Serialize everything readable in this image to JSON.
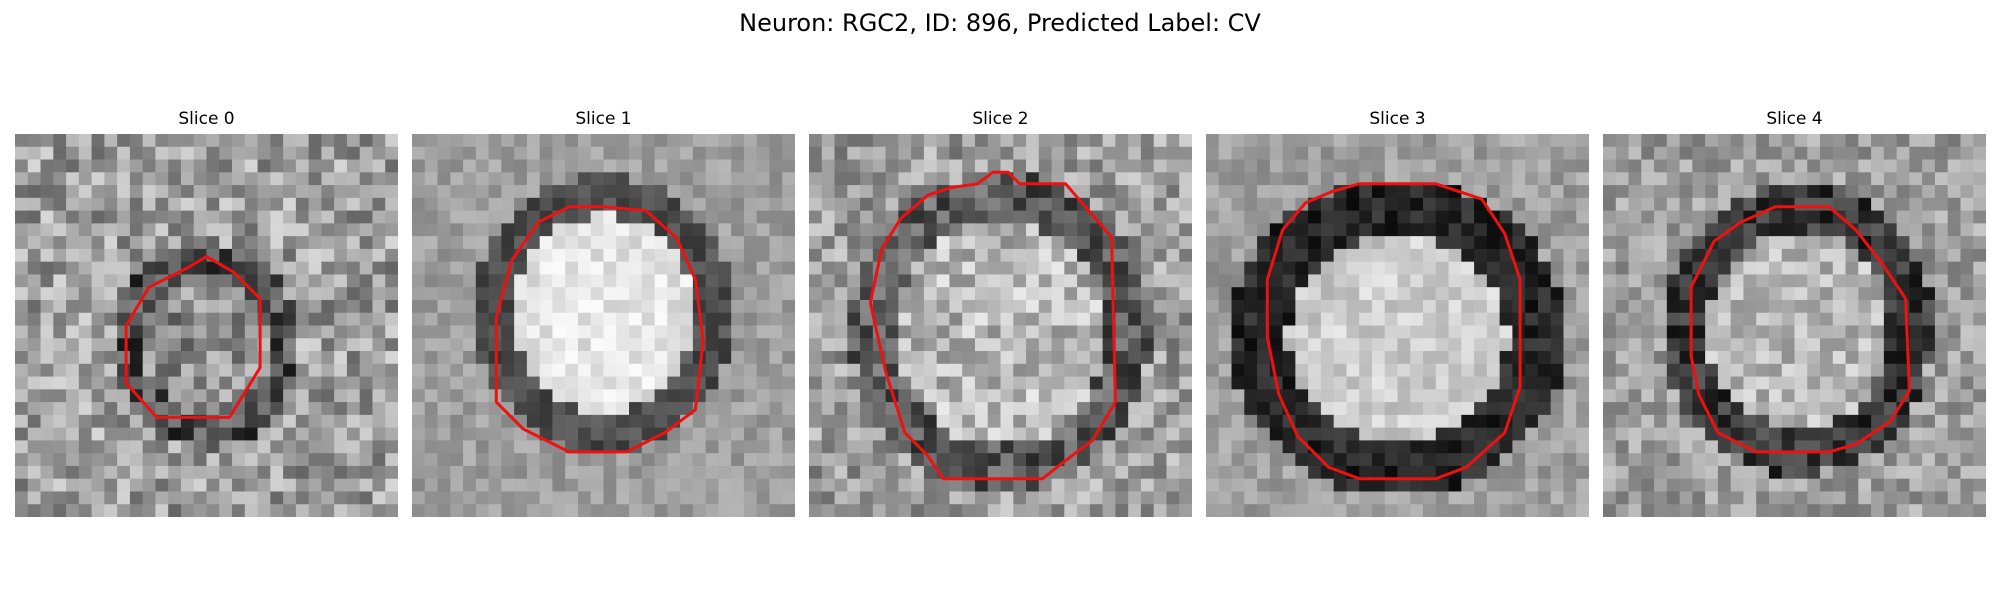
{
  "figure": {
    "suptitle": "Neuron: RGC2, ID: 896, Predicted Label: CV"
  },
  "panels": [
    {
      "title": "Slice 0"
    },
    {
      "title": "Slice 1"
    },
    {
      "title": "Slice 2"
    },
    {
      "title": "Slice 3"
    },
    {
      "title": "Slice 4"
    }
  ],
  "colors": {
    "contour": "#ee1111",
    "background": "#ffffff"
  }
}
